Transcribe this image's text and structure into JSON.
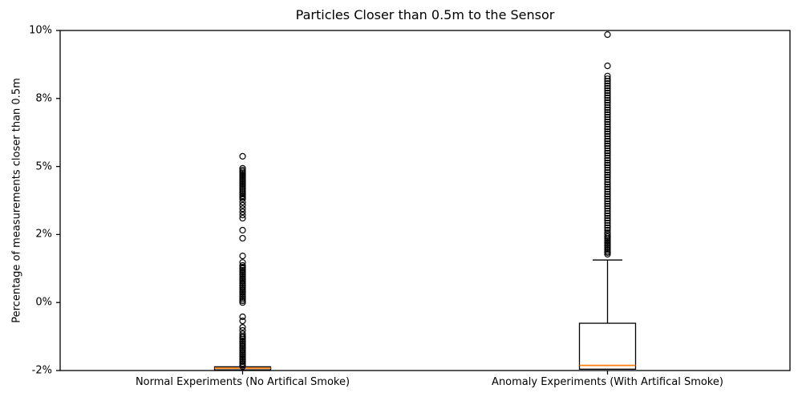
{
  "chart_data": {
    "type": "boxplot",
    "title": "Particles Closer than 0.5m to the Sensor",
    "xlabel": "",
    "ylabel": "Percentage of measurements closer than 0.5m",
    "grid": false,
    "legend": null,
    "y_ticks": {
      "values": [
        -2,
        0,
        2,
        5,
        8,
        10
      ],
      "labels": [
        "-2%",
        "0%",
        "2%",
        "5%",
        "8%",
        "10%"
      ],
      "spacing": "ticks rendered evenly spaced along axis",
      "ylim_labels": [
        "-2%",
        "10%"
      ]
    },
    "categories": [
      "Normal Experiments (No Artifical Smoke)",
      "Anomaly Experiments (With Artifical Smoke)"
    ],
    "series": [
      {
        "name": "Normal Experiments (No Artifical Smoke)",
        "q1": -1.98,
        "median": -1.93,
        "q3": -1.89,
        "whisker_low": -1.98,
        "whisker_high": -1.89,
        "fliers": [
          5.45,
          4.92,
          4.84,
          4.77,
          4.7,
          4.63,
          4.56,
          4.49,
          4.42,
          4.35,
          4.28,
          4.21,
          4.14,
          4.07,
          4.0,
          3.92,
          3.85,
          3.78,
          3.71,
          3.64,
          3.57,
          3.43,
          3.29,
          3.14,
          3.0,
          2.86,
          2.72,
          2.19,
          1.89,
          1.37,
          1.18,
          1.09,
          1.04,
          1.0,
          0.95,
          0.9,
          0.85,
          0.81,
          0.76,
          0.71,
          0.67,
          0.62,
          0.57,
          0.52,
          0.48,
          0.43,
          0.38,
          0.33,
          0.29,
          0.24,
          0.19,
          0.15,
          0.1,
          0.05,
          0.0,
          -0.42,
          -0.54,
          -0.73,
          -0.82,
          -0.92,
          -0.99,
          -1.03,
          -1.08,
          -1.13,
          -1.17,
          -1.22,
          -1.27,
          -1.32,
          -1.36,
          -1.41,
          -1.46,
          -1.51,
          -1.55,
          -1.6,
          -1.65,
          -1.69,
          -1.74,
          -1.79,
          -1.84,
          -1.88
        ]
      },
      {
        "name": "Anomaly Experiments (With Artifical Smoke)",
        "q1": -1.96,
        "median": -1.85,
        "q3": -0.61,
        "whisker_low": -1.96,
        "whisker_high": 1.25,
        "fliers": [
          9.88,
          8.96,
          8.66,
          8.58,
          8.51,
          8.44,
          8.37,
          8.3,
          8.23,
          8.16,
          8.09,
          8.02,
          7.92,
          7.82,
          7.71,
          7.6,
          7.5,
          7.39,
          7.29,
          7.18,
          7.07,
          6.97,
          6.86,
          6.75,
          6.65,
          6.54,
          6.44,
          6.33,
          6.22,
          6.12,
          6.01,
          5.91,
          5.8,
          5.69,
          5.59,
          5.48,
          5.37,
          5.27,
          5.16,
          5.06,
          4.95,
          4.84,
          4.74,
          4.63,
          4.53,
          4.42,
          4.31,
          4.21,
          4.1,
          4.0,
          3.89,
          3.78,
          3.68,
          3.57,
          3.47,
          3.36,
          3.25,
          3.15,
          3.04,
          2.93,
          2.83,
          2.72,
          2.62,
          2.51,
          2.4,
          2.3,
          2.19,
          2.08,
          2.01,
          1.94,
          1.89,
          1.84,
          1.8,
          1.75,
          1.7,
          1.66,
          1.61,
          1.56,
          1.51,
          1.47,
          1.42
        ]
      }
    ],
    "style": {
      "median_color": "#ff7f0e",
      "box_color": "#000000",
      "flier_marker": "open-circle",
      "background": "#ffffff"
    }
  }
}
